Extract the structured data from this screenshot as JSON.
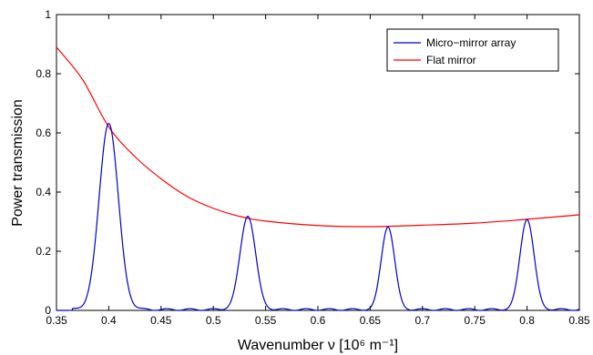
{
  "chart_data": {
    "type": "line",
    "xlabel": "Wavenumber  ν [10⁶ m⁻¹]",
    "ylabel": "Power transmission",
    "xlim": [
      0.35,
      0.85
    ],
    "ylim": [
      0,
      1
    ],
    "x_ticks": [
      "0.35",
      "0.4",
      "0.45",
      "0.5",
      "0.55",
      "0.6",
      "0.65",
      "0.7",
      "0.75",
      "0.8",
      "0.85"
    ],
    "y_ticks": [
      "0",
      "0.2",
      "0.4",
      "0.6",
      "0.8",
      "1"
    ],
    "grid": false,
    "legend_position": "top-right",
    "series": [
      {
        "name": "Micro−mirror array",
        "color": "#0000cc",
        "peaks": [
          {
            "x": 0.4,
            "y": 0.632,
            "width": 0.0092
          },
          {
            "x": 0.533,
            "y": 0.318,
            "width": 0.0075
          },
          {
            "x": 0.667,
            "y": 0.282,
            "width": 0.0065
          },
          {
            "x": 0.8,
            "y": 0.307,
            "width": 0.0068
          }
        ],
        "side_lobe_level": 0.006
      },
      {
        "name": "Flat mirror",
        "color": "#ff0000",
        "x": [
          0.35,
          0.375,
          0.4,
          0.425,
          0.45,
          0.475,
          0.5,
          0.525,
          0.55,
          0.6,
          0.65,
          0.7,
          0.75,
          0.8,
          0.85
        ],
        "y": [
          0.89,
          0.78,
          0.62,
          0.52,
          0.445,
          0.385,
          0.345,
          0.318,
          0.302,
          0.287,
          0.283,
          0.288,
          0.295,
          0.308,
          0.323
        ]
      }
    ]
  }
}
